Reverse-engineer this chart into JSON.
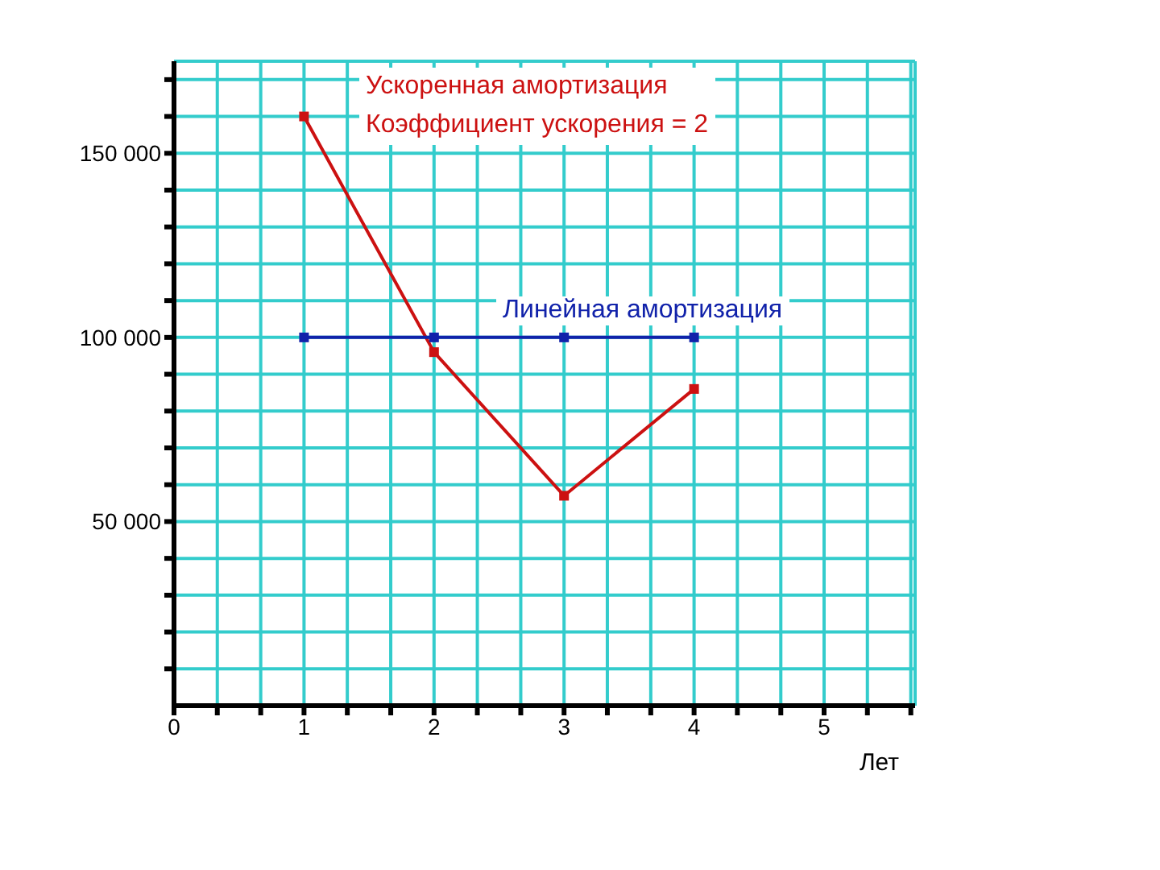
{
  "chart_data": {
    "type": "line",
    "xlabel": "Лет",
    "x": [
      1,
      2,
      3,
      4
    ],
    "series": [
      {
        "name": "Ускоренная амортизация",
        "color": "#cc1111",
        "values": [
          160000,
          96000,
          57000,
          86000
        ]
      },
      {
        "name": "Линейная амортизация",
        "color": "#1122aa",
        "values": [
          100000,
          100000,
          100000,
          100000
        ]
      }
    ],
    "annotations": [
      "Коэффициент ускорения = 2"
    ],
    "xlim": [
      0,
      5.7
    ],
    "xticks": [
      0,
      {
        "value": 0.333,
        "label": null
      },
      {
        "value": 0.667,
        "label": null
      },
      1,
      {
        "value": 1.333,
        "label": null
      },
      {
        "value": 1.667,
        "label": null
      },
      2,
      {
        "value": 2.333,
        "label": null
      },
      {
        "value": 2.667,
        "label": null
      },
      3,
      {
        "value": 3.333,
        "label": null
      },
      {
        "value": 3.667,
        "label": null
      },
      4,
      {
        "value": 4.333,
        "label": null
      },
      {
        "value": 4.667,
        "label": null
      },
      5,
      {
        "value": 5.333,
        "label": null
      },
      {
        "value": 5.667,
        "label": null
      }
    ],
    "ylim": [
      0,
      175000
    ],
    "yticks": [
      {
        "value": 10000,
        "label": null
      },
      {
        "value": 20000,
        "label": null
      },
      {
        "value": 30000,
        "label": null
      },
      {
        "value": 40000,
        "label": null
      },
      {
        "value": 50000,
        "label": "50 000"
      },
      {
        "value": 60000,
        "label": null
      },
      {
        "value": 70000,
        "label": null
      },
      {
        "value": 80000,
        "label": null
      },
      {
        "value": 90000,
        "label": null
      },
      {
        "value": 100000,
        "label": "100 000"
      },
      {
        "value": 110000,
        "label": null
      },
      {
        "value": 120000,
        "label": null
      },
      {
        "value": 130000,
        "label": null
      },
      {
        "value": 140000,
        "label": null
      },
      {
        "value": 150000,
        "label": "150 000"
      },
      {
        "value": 160000,
        "label": null
      },
      {
        "value": 170000,
        "label": null
      }
    ],
    "grid": true,
    "marker": "square",
    "line_style": "solid"
  }
}
